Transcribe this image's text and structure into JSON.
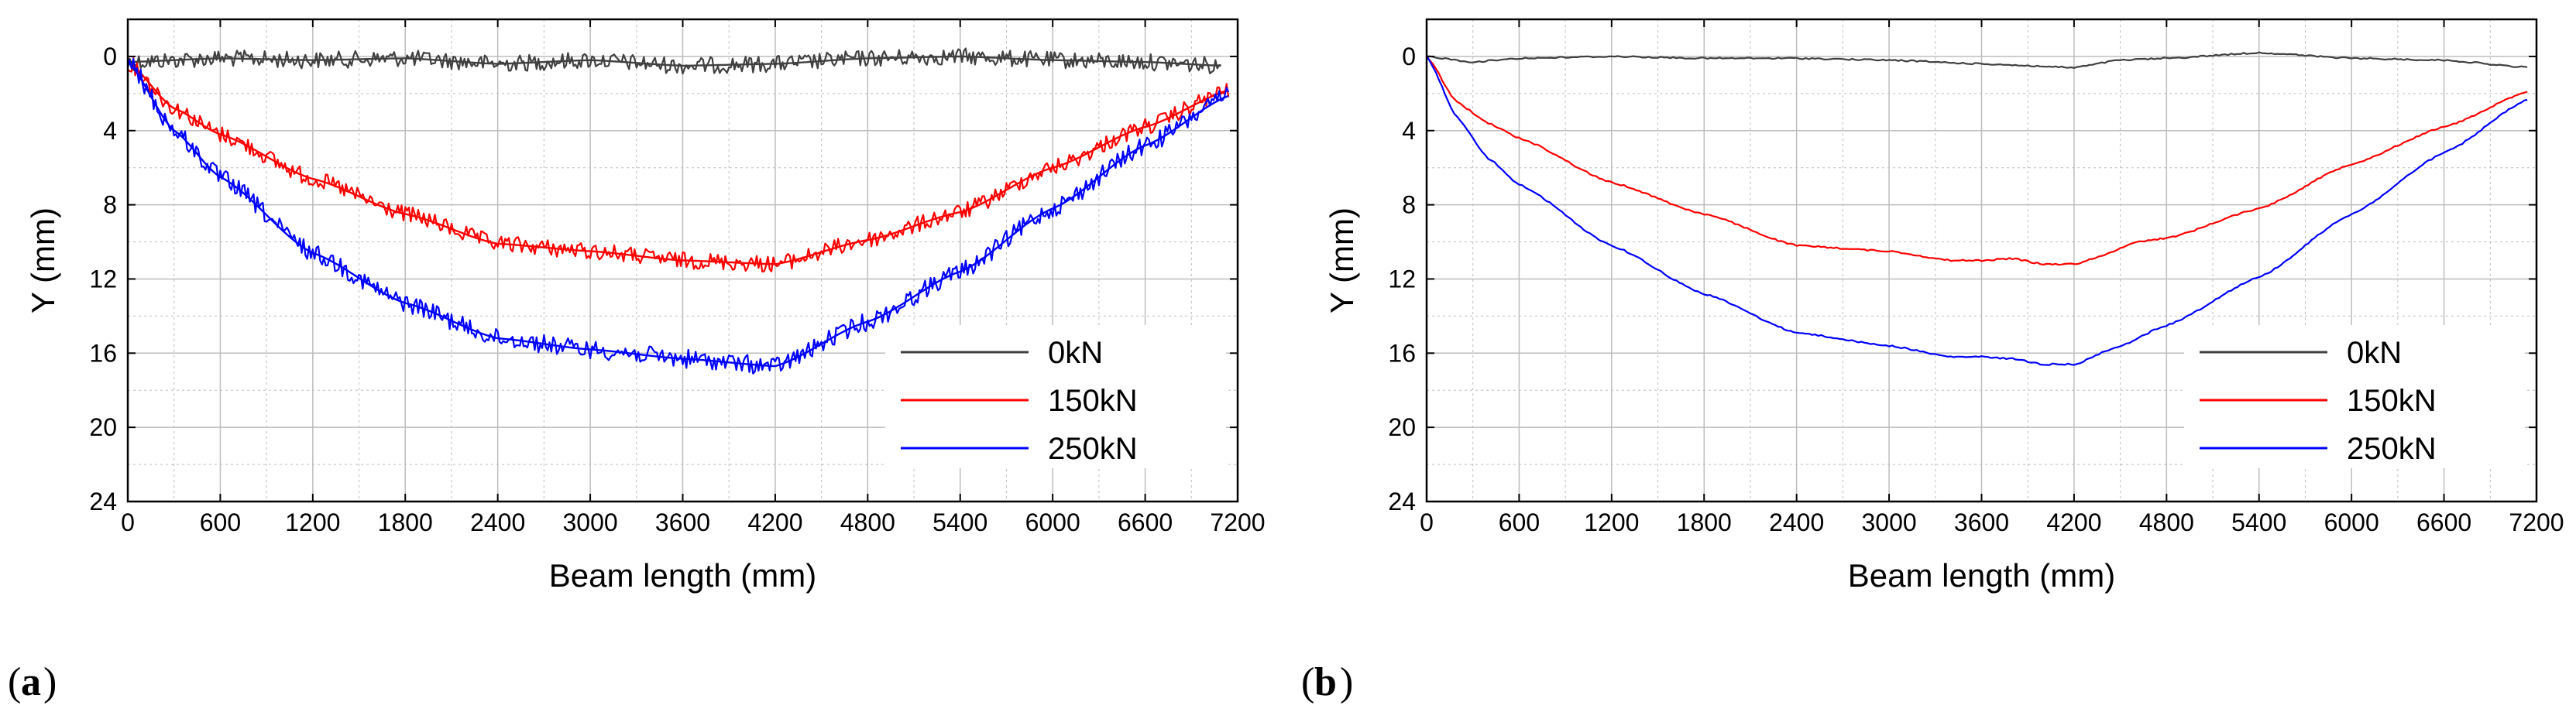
{
  "colors": {
    "s0": "#404040",
    "s150": "#ff0000",
    "s250": "#0000ff",
    "grid": "#bdbdbd"
  },
  "chart_data": [
    {
      "type": "line",
      "panel_label": "a",
      "xlabel": "Beam length (mm)",
      "ylabel": "Y (mm)",
      "xlim": [
        0,
        7200
      ],
      "ylim": [
        24,
        -2
      ],
      "xticks": [
        "0",
        "600",
        "1200",
        "1800",
        "2400",
        "3000",
        "3600",
        "4200",
        "4800",
        "5400",
        "6000",
        "6600",
        "7200"
      ],
      "yticks": [
        "0",
        "4",
        "8",
        "12",
        "16",
        "20",
        "24"
      ],
      "legend_position": "bottom-right",
      "grid": true,
      "noise": true,
      "series": [
        {
          "name": "0kN",
          "x": [
            0,
            600,
            1200,
            1800,
            2400,
            3000,
            3600,
            4200,
            4800,
            5400,
            6000,
            6600,
            7100
          ],
          "y": [
            0.3,
            0.1,
            0.2,
            0.1,
            0.4,
            0.2,
            0.5,
            0.4,
            0.1,
            0.0,
            0.2,
            0.3,
            0.5
          ]
        },
        {
          "name": "150kN",
          "x": [
            0,
            300,
            600,
            1200,
            1800,
            2400,
            3000,
            3600,
            4200,
            4800,
            5400,
            6000,
            6600,
            7150
          ],
          "y": [
            0.3,
            2.8,
            4.2,
            6.6,
            8.5,
            10.1,
            10.5,
            11.0,
            11.2,
            9.9,
            8.4,
            6.0,
            3.8,
            1.8
          ]
        },
        {
          "name": "250kN",
          "x": [
            0,
            300,
            600,
            1200,
            1800,
            2400,
            3000,
            3600,
            4200,
            4800,
            5400,
            6000,
            6600,
            7150
          ],
          "y": [
            0.3,
            4.0,
            6.5,
            10.6,
            13.3,
            15.2,
            15.8,
            16.3,
            16.7,
            14.3,
            11.6,
            8.2,
            4.8,
            2.1
          ]
        }
      ]
    },
    {
      "type": "line",
      "panel_label": "b",
      "xlabel": "Beam length (mm)",
      "ylabel": "Y (mm)",
      "xlim": [
        0,
        7200
      ],
      "ylim": [
        24,
        -2
      ],
      "xticks": [
        "0",
        "600",
        "1200",
        "1800",
        "2400",
        "3000",
        "3600",
        "4200",
        "4800",
        "5400",
        "6000",
        "6600",
        "7200"
      ],
      "yticks": [
        "0",
        "4",
        "8",
        "12",
        "16",
        "20",
        "24"
      ],
      "legend_position": "bottom-right",
      "grid": true,
      "noise": false,
      "series": [
        {
          "name": "0kN",
          "x": [
            0,
            300,
            600,
            1200,
            1800,
            2400,
            3000,
            3600,
            4200,
            4500,
            4800,
            5400,
            6000,
            6600,
            7150
          ],
          "y": [
            0.0,
            0.3,
            0.1,
            0.0,
            0.1,
            0.1,
            0.2,
            0.4,
            0.6,
            0.2,
            0.1,
            -0.2,
            0.1,
            0.2,
            0.6
          ]
        },
        {
          "name": "150kN",
          "x": [
            0,
            200,
            400,
            600,
            1200,
            1800,
            2400,
            3000,
            3400,
            3600,
            3800,
            4000,
            4200,
            4400,
            4600,
            4800,
            5400,
            6000,
            6600,
            7150
          ],
          "y": [
            0.0,
            2.5,
            3.6,
            4.4,
            6.8,
            8.5,
            10.2,
            10.5,
            11.0,
            11.0,
            10.9,
            11.2,
            11.2,
            10.7,
            10.0,
            9.8,
            8.2,
            5.8,
            3.8,
            1.9
          ]
        },
        {
          "name": "250kN",
          "x": [
            0,
            200,
            400,
            600,
            1200,
            1800,
            2400,
            3000,
            3400,
            3600,
            3800,
            4000,
            4200,
            4500,
            4800,
            5400,
            6000,
            6600,
            7150
          ],
          "y": [
            0.0,
            3.3,
            5.5,
            6.9,
            10.2,
            12.8,
            14.9,
            15.6,
            16.2,
            16.2,
            16.3,
            16.6,
            16.6,
            15.6,
            14.5,
            11.9,
            8.5,
            5.2,
            2.3
          ]
        }
      ]
    }
  ]
}
